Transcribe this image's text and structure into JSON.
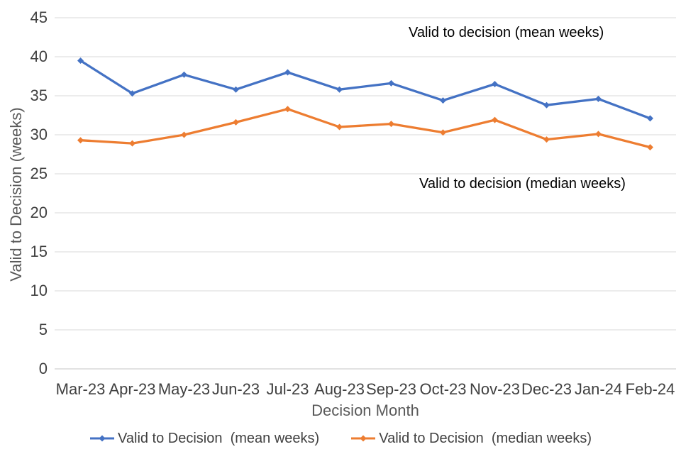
{
  "chart_data": {
    "type": "line",
    "categories": [
      "Mar-23",
      "Apr-23",
      "May-23",
      "Jun-23",
      "Jul-23",
      "Aug-23",
      "Sep-23",
      "Oct-23",
      "Nov-23",
      "Dec-23",
      "Jan-24",
      "Feb-24"
    ],
    "series": [
      {
        "name": "Valid to Decision  (mean weeks)",
        "color": "#4472C4",
        "values": [
          39.5,
          35.3,
          37.7,
          35.8,
          38.0,
          35.8,
          36.6,
          34.4,
          36.5,
          33.8,
          34.6,
          32.1
        ]
      },
      {
        "name": "Valid to Decision  (median weeks)",
        "color": "#ED7D31",
        "values": [
          29.3,
          28.9,
          30.0,
          31.6,
          33.3,
          31.0,
          31.4,
          30.3,
          31.9,
          29.4,
          30.1,
          28.4
        ]
      }
    ],
    "xlabel": "Decision Month",
    "ylabel": "Valid to Decision (weeks)",
    "ylim": [
      0,
      45
    ],
    "y_ticks": [
      0,
      5,
      10,
      15,
      20,
      25,
      30,
      35,
      40,
      45
    ],
    "grid": true,
    "legend_position": "bottom",
    "marker": "diamond",
    "annotations": [
      {
        "text": "Valid to decision (mean weeks)"
      },
      {
        "text": "Valid to decision (median weeks)"
      }
    ],
    "colors": {
      "gridline": "#D9D9D9",
      "baseline": "#C6C6C6",
      "tick_text": "#404040",
      "axis_title_text": "#595959",
      "annotation_text": "#000000",
      "legend_text": "#404040"
    }
  }
}
